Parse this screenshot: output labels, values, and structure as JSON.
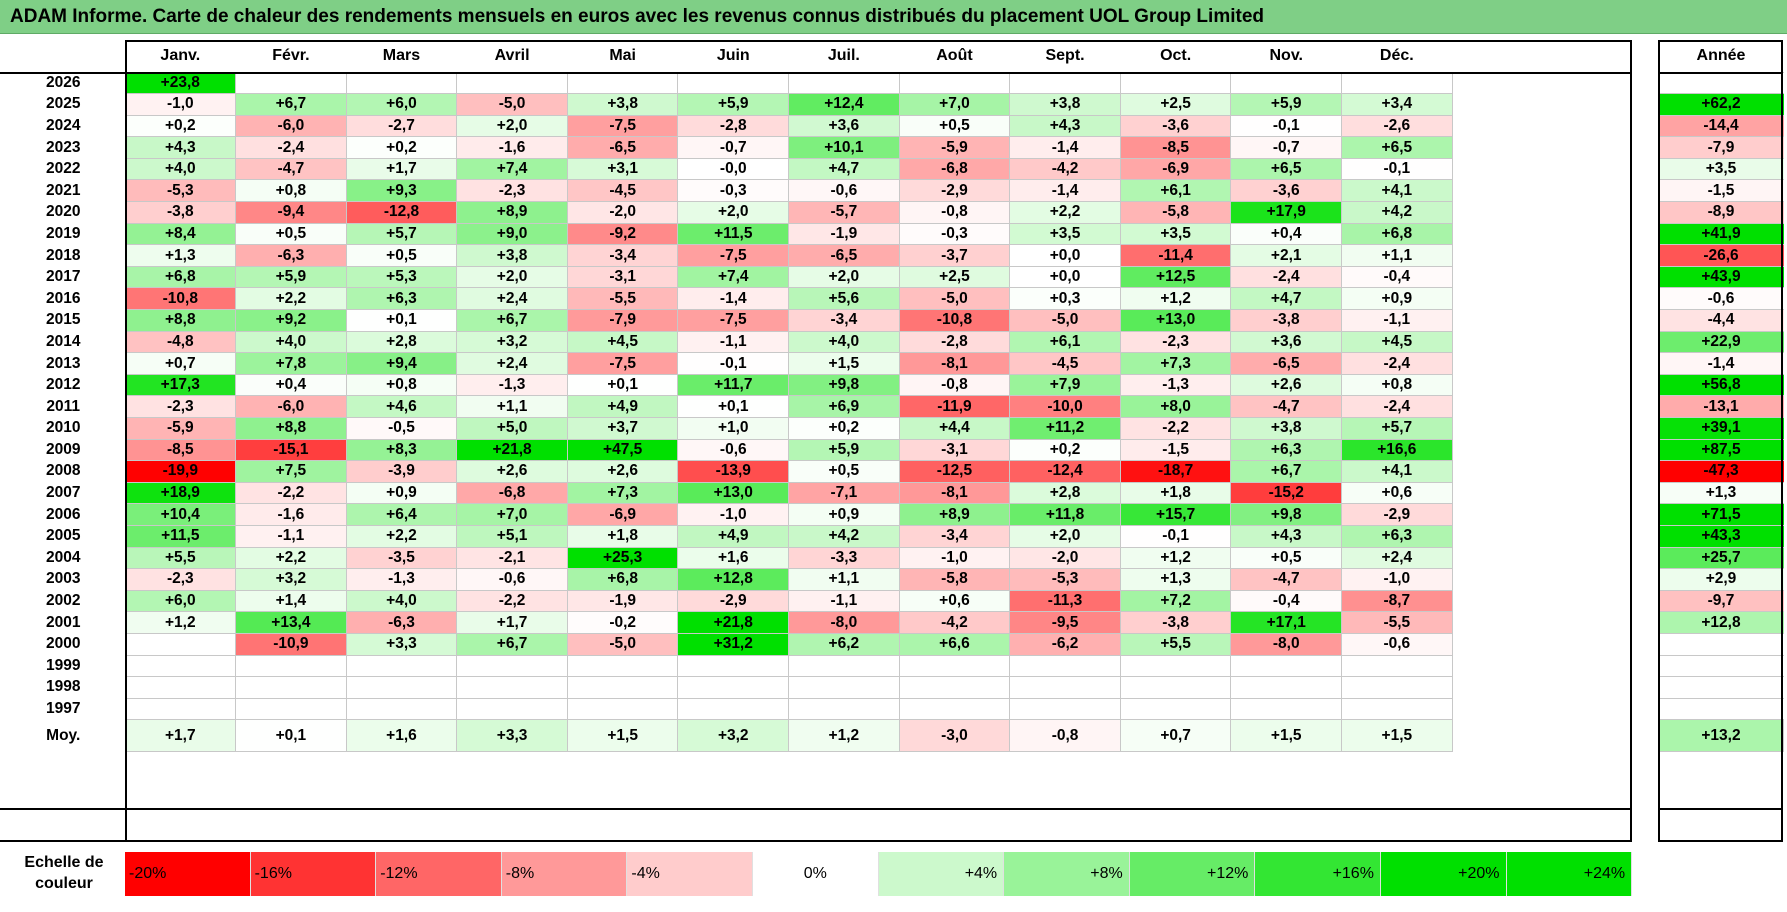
{
  "title": "ADAM Informe. Carte de chaleur des rendements mensuels en euros avec les revenus connus distribués du placement UOL Group Limited",
  "colors": {
    "title_bg": "#7fcf86",
    "neg_max": "#ff0000",
    "pos_max": "#00e000",
    "neutral": "#ffffff"
  },
  "chart_data": {
    "type": "heatmap",
    "months": [
      "Janv.",
      "Févr.",
      "Mars",
      "Avril",
      "Mai",
      "Juin",
      "Juil.",
      "Août",
      "Sept.",
      "Oct.",
      "Nov.",
      "Déc."
    ],
    "annual_header": "Année",
    "rows": [
      {
        "year": "2026",
        "values": [
          "+23,8",
          "",
          "",
          "",
          "",
          "",
          "",
          "",
          "",
          "",
          "",
          ""
        ],
        "annual": ""
      },
      {
        "year": "2025",
        "values": [
          "-1,0",
          "+6,7",
          "+6,0",
          "-5,0",
          "+3,8",
          "+5,9",
          "+12,4",
          "+7,0",
          "+3,8",
          "+2,5",
          "+5,9",
          "+3,4"
        ],
        "annual": "+62,2"
      },
      {
        "year": "2024",
        "values": [
          "+0,2",
          "-6,0",
          "-2,7",
          "+2,0",
          "-7,5",
          "-2,8",
          "+3,6",
          "+0,5",
          "+4,3",
          "-3,6",
          "-0,1",
          "-2,6"
        ],
        "annual": "-14,4"
      },
      {
        "year": "2023",
        "values": [
          "+4,3",
          "-2,4",
          "+0,2",
          "-1,6",
          "-6,5",
          "-0,7",
          "+10,1",
          "-5,9",
          "-1,4",
          "-8,5",
          "-0,7",
          "+6,5"
        ],
        "annual": "-7,9"
      },
      {
        "year": "2022",
        "values": [
          "+4,0",
          "-4,7",
          "+1,7",
          "+7,4",
          "+3,1",
          "-0,0",
          "+4,7",
          "-6,8",
          "-4,2",
          "-6,9",
          "+6,5",
          "-0,1"
        ],
        "annual": "+3,5"
      },
      {
        "year": "2021",
        "values": [
          "-5,3",
          "+0,8",
          "+9,3",
          "-2,3",
          "-4,5",
          "-0,3",
          "-0,6",
          "-2,9",
          "-1,4",
          "+6,1",
          "-3,6",
          "+4,1"
        ],
        "annual": "-1,5"
      },
      {
        "year": "2020",
        "values": [
          "-3,8",
          "-9,4",
          "-12,8",
          "+8,9",
          "-2,0",
          "+2,0",
          "-5,7",
          "-0,8",
          "+2,2",
          "-5,8",
          "+17,9",
          "+4,2"
        ],
        "annual": "-8,9"
      },
      {
        "year": "2019",
        "values": [
          "+8,4",
          "+0,5",
          "+5,7",
          "+9,0",
          "-9,2",
          "+11,5",
          "-1,9",
          "-0,3",
          "+3,5",
          "+3,5",
          "+0,4",
          "+6,8"
        ],
        "annual": "+41,9"
      },
      {
        "year": "2018",
        "values": [
          "+1,3",
          "-6,3",
          "+0,5",
          "+3,8",
          "-3,4",
          "-7,5",
          "-6,5",
          "-3,7",
          "+0,0",
          "-11,4",
          "+2,1",
          "+1,1"
        ],
        "annual": "-26,6"
      },
      {
        "year": "2017",
        "values": [
          "+6,8",
          "+5,9",
          "+5,3",
          "+2,0",
          "-3,1",
          "+7,4",
          "+2,0",
          "+2,5",
          "+0,0",
          "+12,5",
          "-2,4",
          "-0,4"
        ],
        "annual": "+43,9"
      },
      {
        "year": "2016",
        "values": [
          "-10,8",
          "+2,2",
          "+6,3",
          "+2,4",
          "-5,5",
          "-1,4",
          "+5,6",
          "-5,0",
          "+0,3",
          "+1,2",
          "+4,7",
          "+0,9"
        ],
        "annual": "-0,6"
      },
      {
        "year": "2015",
        "values": [
          "+8,8",
          "+9,2",
          "+0,1",
          "+6,7",
          "-7,9",
          "-7,5",
          "-3,4",
          "-10,8",
          "-5,0",
          "+13,0",
          "-3,8",
          "-1,1"
        ],
        "annual": "-4,4"
      },
      {
        "year": "2014",
        "values": [
          "-4,8",
          "+4,0",
          "+2,8",
          "+3,2",
          "+4,5",
          "-1,1",
          "+4,0",
          "-2,8",
          "+6,1",
          "-2,3",
          "+3,6",
          "+4,5"
        ],
        "annual": "+22,9"
      },
      {
        "year": "2013",
        "values": [
          "+0,7",
          "+7,8",
          "+9,4",
          "+2,4",
          "-7,5",
          "-0,1",
          "+1,5",
          "-8,1",
          "-4,5",
          "+7,3",
          "-6,5",
          "-2,4"
        ],
        "annual": "-1,4"
      },
      {
        "year": "2012",
        "values": [
          "+17,3",
          "+0,4",
          "+0,8",
          "-1,3",
          "+0,1",
          "+11,7",
          "+9,8",
          "-0,8",
          "+7,9",
          "-1,3",
          "+2,6",
          "+0,8"
        ],
        "annual": "+56,8"
      },
      {
        "year": "2011",
        "values": [
          "-2,3",
          "-6,0",
          "+4,6",
          "+1,1",
          "+4,9",
          "+0,1",
          "+6,9",
          "-11,9",
          "-10,0",
          "+8,0",
          "-4,7",
          "-2,4"
        ],
        "annual": "-13,1"
      },
      {
        "year": "2010",
        "values": [
          "-5,9",
          "+8,8",
          "-0,5",
          "+5,0",
          "+3,7",
          "+1,0",
          "+0,2",
          "+4,4",
          "+11,2",
          "-2,2",
          "+3,8",
          "+5,7"
        ],
        "annual": "+39,1"
      },
      {
        "year": "2009",
        "values": [
          "-8,5",
          "-15,1",
          "+8,3",
          "+21,8",
          "+47,5",
          "-0,6",
          "+5,9",
          "-3,1",
          "+0,2",
          "-1,5",
          "+6,3",
          "+16,6"
        ],
        "annual": "+87,5"
      },
      {
        "year": "2008",
        "values": [
          "-19,9",
          "+7,5",
          "-3,9",
          "+2,6",
          "+2,6",
          "-13,9",
          "+0,5",
          "-12,5",
          "-12,4",
          "-18,7",
          "+6,7",
          "+4,1"
        ],
        "annual": "-47,3"
      },
      {
        "year": "2007",
        "values": [
          "+18,9",
          "-2,2",
          "+0,9",
          "-6,8",
          "+7,3",
          "+13,0",
          "-7,1",
          "-8,1",
          "+2,8",
          "+1,8",
          "-15,2",
          "+0,6"
        ],
        "annual": "+1,3"
      },
      {
        "year": "2006",
        "values": [
          "+10,4",
          "-1,6",
          "+6,4",
          "+7,0",
          "-6,9",
          "-1,0",
          "+0,9",
          "+8,9",
          "+11,8",
          "+15,7",
          "+9,8",
          "-2,9"
        ],
        "annual": "+71,5"
      },
      {
        "year": "2005",
        "values": [
          "+11,5",
          "-1,1",
          "+2,2",
          "+5,1",
          "+1,8",
          "+4,9",
          "+4,2",
          "-3,4",
          "+2,0",
          "-0,1",
          "+4,3",
          "+6,3"
        ],
        "annual": "+43,3"
      },
      {
        "year": "2004",
        "values": [
          "+5,5",
          "+2,2",
          "-3,5",
          "-2,1",
          "+25,3",
          "+1,6",
          "-3,3",
          "-1,0",
          "-2,0",
          "+1,2",
          "+0,5",
          "+2,4"
        ],
        "annual": "+25,7"
      },
      {
        "year": "2003",
        "values": [
          "-2,3",
          "+3,2",
          "-1,3",
          "-0,6",
          "+6,8",
          "+12,8",
          "+1,1",
          "-5,8",
          "-5,3",
          "+1,3",
          "-4,7",
          "-1,0"
        ],
        "annual": "+2,9"
      },
      {
        "year": "2002",
        "values": [
          "+6,0",
          "+1,4",
          "+4,0",
          "-2,2",
          "-1,9",
          "-2,9",
          "-1,1",
          "+0,6",
          "-11,3",
          "+7,2",
          "-0,4",
          "-8,7"
        ],
        "annual": "-9,7"
      },
      {
        "year": "2001",
        "values": [
          "+1,2",
          "+13,4",
          "-6,3",
          "+1,7",
          "-0,2",
          "+21,8",
          "-8,0",
          "-4,2",
          "-9,5",
          "-3,8",
          "+17,1",
          "-5,5"
        ],
        "annual": "+12,8"
      },
      {
        "year": "2000",
        "values": [
          "",
          "-10,9",
          "+3,3",
          "+6,7",
          "-5,0",
          "+31,2",
          "+6,2",
          "+6,6",
          "-6,2",
          "+5,5",
          "-8,0",
          "-0,6"
        ],
        "annual": ""
      },
      {
        "year": "1999",
        "values": [
          "",
          "",
          "",
          "",
          "",
          "",
          "",
          "",
          "",
          "",
          "",
          ""
        ],
        "annual": ""
      },
      {
        "year": "1998",
        "values": [
          "",
          "",
          "",
          "",
          "",
          "",
          "",
          "",
          "",
          "",
          "",
          ""
        ],
        "annual": ""
      },
      {
        "year": "1997",
        "values": [
          "",
          "",
          "",
          "",
          "",
          "",
          "",
          "",
          "",
          "",
          "",
          ""
        ],
        "annual": ""
      }
    ],
    "average_label": "Moy.",
    "averages": [
      "+1,7",
      "+0,1",
      "+1,6",
      "+3,3",
      "+1,5",
      "+3,2",
      "+1,2",
      "-3,0",
      "-0,8",
      "+0,7",
      "+1,5",
      "+1,5"
    ],
    "average_annual": "+13,2",
    "scale_label": "Echelle de couleur",
    "scale": [
      "-20%",
      "-16%",
      "-12%",
      "-8%",
      "-4%",
      "0%",
      "+4%",
      "+8%",
      "+12%",
      "+16%",
      "+20%",
      "+24%"
    ],
    "scale_values": [
      -20,
      -16,
      -12,
      -8,
      -4,
      0,
      4,
      8,
      12,
      16,
      20,
      24
    ]
  }
}
